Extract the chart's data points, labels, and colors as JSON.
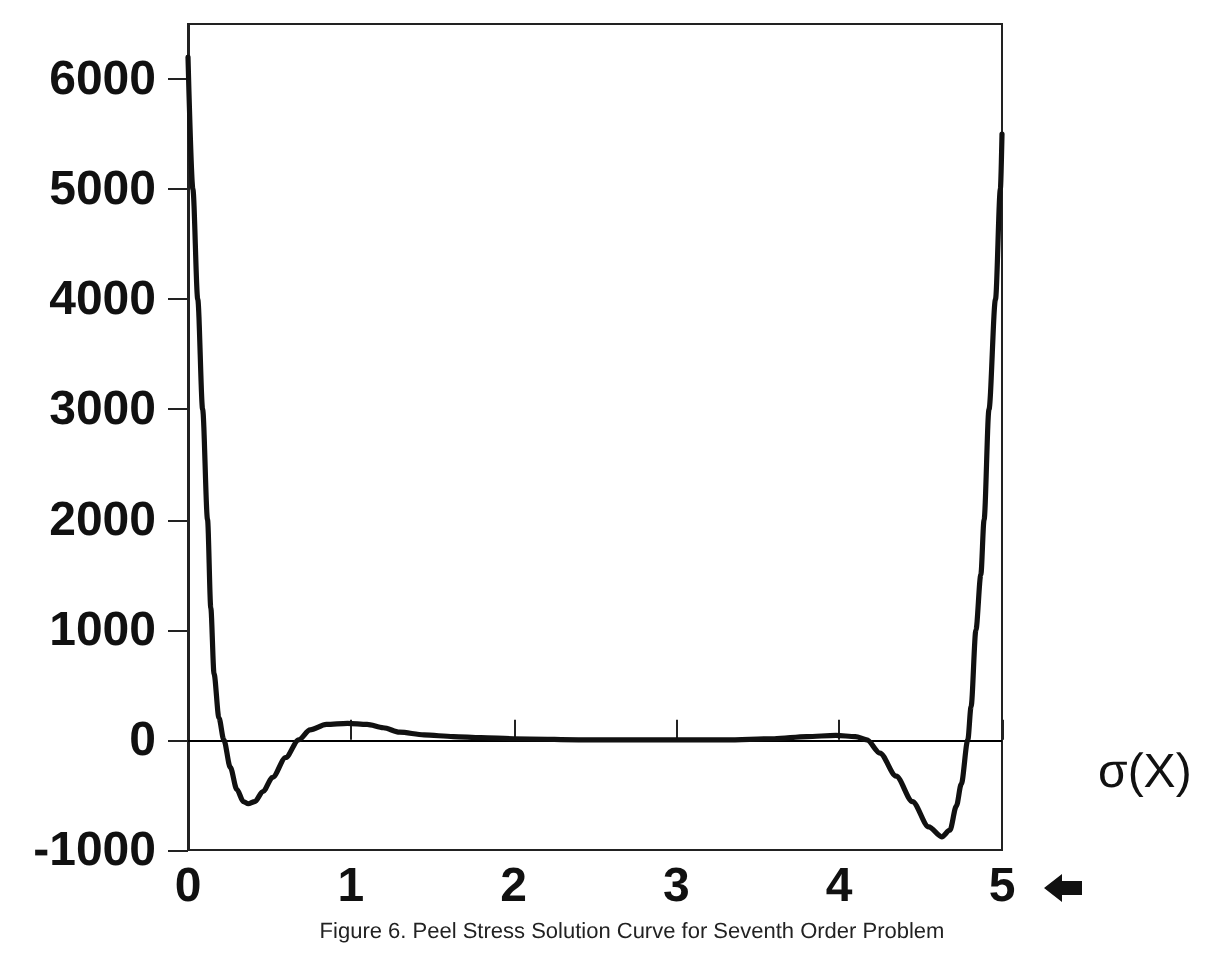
{
  "chart_data": {
    "type": "line",
    "xlabel": "σ(X)",
    "annotations": [
      "Figure 6. Peel Stress Solution Curve for Seventh Order Problem"
    ],
    "x": [
      0,
      0.03,
      0.06,
      0.09,
      0.12,
      0.14,
      0.16,
      0.19,
      0.22,
      0.26,
      0.3,
      0.34,
      0.37,
      0.41,
      0.46,
      0.52,
      0.6,
      0.68,
      0.75,
      0.85,
      0.98,
      1.1,
      1.2,
      1.3,
      1.45,
      1.63,
      1.8,
      2,
      2.5,
      3,
      3.3,
      3.6,
      3.8,
      3.98,
      4.1,
      4.17,
      4.25,
      4.35,
      4.45,
      4.55,
      4.63,
      4.68,
      4.72,
      4.75,
      4.79,
      4.81,
      4.84,
      4.87,
      4.89,
      4.92,
      4.96,
      4.99,
      5
    ],
    "series": [
      {
        "color": "#111111",
        "values": [
          6200,
          5000,
          4000,
          3000,
          2000,
          1200,
          600,
          200,
          0,
          -250,
          -450,
          -560,
          -580,
          -560,
          -470,
          -340,
          -160,
          0,
          90,
          140,
          150,
          140,
          110,
          70,
          45,
          30,
          20,
          10,
          0,
          0,
          0,
          10,
          30,
          40,
          30,
          0,
          -120,
          -330,
          -560,
          -790,
          -880,
          -820,
          -600,
          -400,
          0,
          300,
          1000,
          1500,
          2000,
          3000,
          4000,
          5000,
          5500
        ]
      }
    ],
    "xlim": [
      0,
      5
    ],
    "xticks": [
      0,
      1,
      2,
      3,
      4,
      5
    ],
    "ylim": [
      -1000,
      6500
    ],
    "yticks": [
      -1000,
      0,
      1000,
      2000,
      3000,
      4000,
      5000,
      6000
    ],
    "ref_lines": [
      {
        "axis": "y",
        "value": 0,
        "color": "#000000"
      }
    ]
  }
}
